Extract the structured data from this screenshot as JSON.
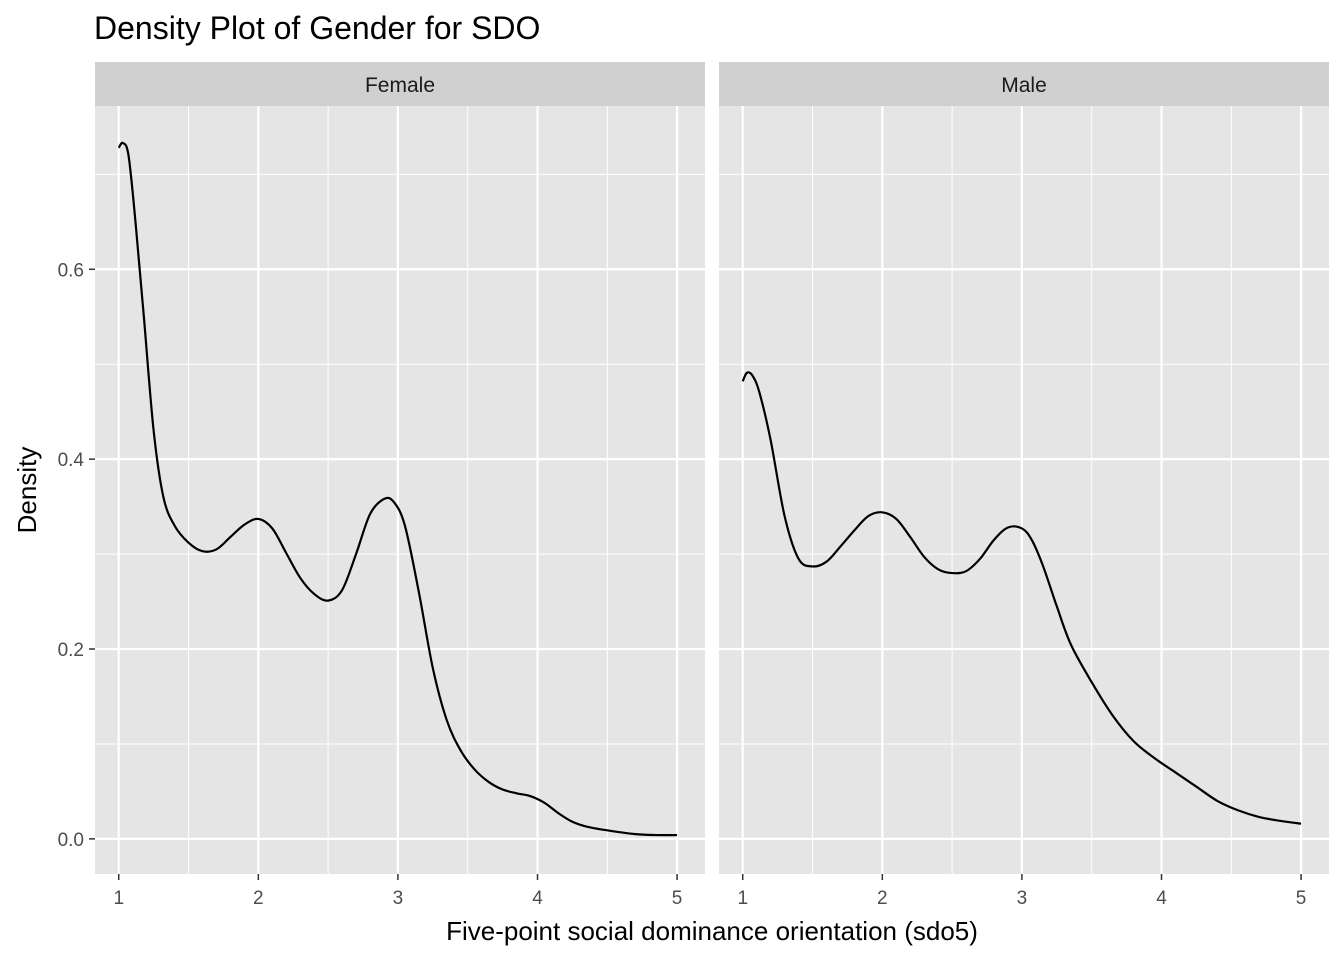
{
  "chart_data": {
    "type": "line",
    "title": "Density Plot of Gender for SDO",
    "xlabel": "Five-point social dominance orientation (sdo5)",
    "ylabel": "Density",
    "xlim": [
      0.83,
      5.2
    ],
    "ylim": [
      -0.037,
      0.772
    ],
    "x_ticks": [
      1,
      2,
      3,
      4,
      5
    ],
    "y_ticks": [
      0.0,
      0.2,
      0.4,
      0.6
    ],
    "y_tick_labels": [
      "0.0",
      "0.2",
      "0.4",
      "0.6"
    ],
    "grid": true,
    "colors": {
      "panel_bg": "#e5e5e5",
      "strip_bg": "#d0d0d0",
      "grid": "#ffffff",
      "line": "#000000"
    },
    "panels": [
      {
        "label": "Female",
        "x": [
          1.0,
          1.03,
          1.07,
          1.12,
          1.18,
          1.25,
          1.32,
          1.4,
          1.5,
          1.6,
          1.7,
          1.8,
          1.9,
          2.0,
          2.1,
          2.2,
          2.3,
          2.4,
          2.5,
          2.6,
          2.7,
          2.8,
          2.9,
          2.97,
          3.05,
          3.15,
          3.25,
          3.35,
          3.45,
          3.55,
          3.65,
          3.75,
          3.85,
          3.95,
          4.05,
          4.15,
          4.25,
          4.35,
          4.5,
          4.7,
          4.85,
          5.0
        ],
        "y": [
          0.728,
          0.733,
          0.72,
          0.65,
          0.55,
          0.43,
          0.36,
          0.33,
          0.312,
          0.303,
          0.305,
          0.318,
          0.331,
          0.337,
          0.327,
          0.301,
          0.275,
          0.258,
          0.251,
          0.262,
          0.3,
          0.342,
          0.358,
          0.355,
          0.33,
          0.26,
          0.18,
          0.125,
          0.093,
          0.073,
          0.06,
          0.052,
          0.048,
          0.045,
          0.038,
          0.027,
          0.018,
          0.013,
          0.009,
          0.005,
          0.004,
          0.004
        ]
      },
      {
        "label": "Male",
        "x": [
          1.0,
          1.03,
          1.07,
          1.12,
          1.2,
          1.3,
          1.4,
          1.5,
          1.6,
          1.7,
          1.8,
          1.9,
          2.0,
          2.1,
          2.2,
          2.3,
          2.4,
          2.5,
          2.6,
          2.7,
          2.8,
          2.9,
          3.0,
          3.07,
          3.15,
          3.25,
          3.35,
          3.5,
          3.65,
          3.8,
          3.95,
          4.1,
          4.25,
          4.4,
          4.55,
          4.7,
          4.85,
          5.0
        ],
        "y": [
          0.482,
          0.491,
          0.488,
          0.47,
          0.42,
          0.34,
          0.295,
          0.287,
          0.292,
          0.308,
          0.325,
          0.34,
          0.344,
          0.337,
          0.318,
          0.297,
          0.284,
          0.28,
          0.282,
          0.295,
          0.315,
          0.328,
          0.327,
          0.315,
          0.288,
          0.245,
          0.205,
          0.165,
          0.13,
          0.103,
          0.085,
          0.07,
          0.055,
          0.04,
          0.03,
          0.023,
          0.019,
          0.016
        ]
      }
    ]
  }
}
